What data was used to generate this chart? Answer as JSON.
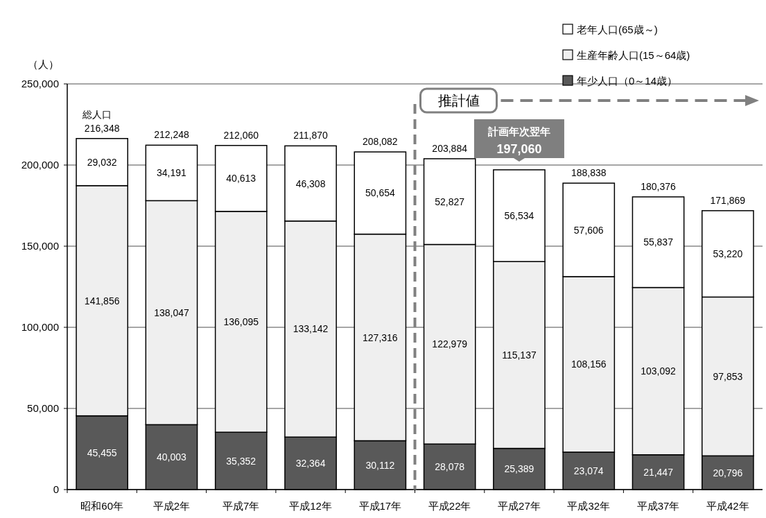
{
  "chart_data": {
    "type": "bar",
    "stacked": true,
    "ylabel": "（人）",
    "categories": [
      "昭和60年",
      "平成2年",
      "平成7年",
      "平成12年",
      "平成17年",
      "平成22年",
      "平成27年",
      "平成32年",
      "平成37年",
      "平成42年"
    ],
    "series": [
      {
        "name": "年少人口（0～14歳）",
        "color": "#595959",
        "values": [
          45455,
          40003,
          35352,
          32364,
          30112,
          28078,
          25389,
          23074,
          21447,
          20796
        ],
        "value_labels": [
          "45,455",
          "40,003",
          "35,352",
          "32,364",
          "30,112",
          "28,078",
          "25,389",
          "23,074",
          "21,447",
          "20,796"
        ]
      },
      {
        "name": "生産年齢人口(15～64歳)",
        "color": "#efefef",
        "values": [
          141856,
          138047,
          136095,
          133142,
          127316,
          122979,
          115137,
          108156,
          103092,
          97853
        ],
        "value_labels": [
          "141,856",
          "138,047",
          "136,095",
          "133,142",
          "127,316",
          "122,979",
          "115,137",
          "108,156",
          "103,092",
          "97,853"
        ]
      },
      {
        "name": "老年人口(65歳～)",
        "color": "#ffffff",
        "values": [
          29032,
          34191,
          40613,
          46308,
          50654,
          52827,
          56534,
          57606,
          55837,
          53220
        ],
        "value_labels": [
          "29,032",
          "34,191",
          "40,613",
          "46,308",
          "50,654",
          "52,827",
          "56,534",
          "57,606",
          "55,837",
          "53,220"
        ]
      }
    ],
    "ylim": [
      0,
      250000
    ],
    "yticks": [
      {
        "value": 0,
        "label": "0"
      },
      {
        "value": 50000,
        "label": "50,000"
      },
      {
        "value": 100000,
        "label": "100,000"
      },
      {
        "value": 150000,
        "label": "150,000"
      },
      {
        "value": 200000,
        "label": "200,000"
      },
      {
        "value": 250000,
        "label": "250,000"
      }
    ],
    "grid": "y",
    "legend": "top right",
    "annotations": [
      "総人口",
      {
        "text": "216,348",
        "x": "昭和60年",
        "y": 216348
      },
      {
        "text": "212,248",
        "x": "平成2年",
        "y": 212248
      },
      {
        "text": "212,060",
        "x": "平成7年",
        "y": 212060
      },
      {
        "text": "211,870",
        "x": "平成12年",
        "y": 211870
      },
      {
        "text": "208,082",
        "x": "平成17年",
        "y": 208082
      },
      {
        "text": "203,884",
        "x": "平成22年",
        "y": 203884
      },
      "計画年次翌年",
      {
        "text": "197,060",
        "x": "平成27年",
        "y": 197060
      },
      {
        "text": "188,838",
        "x": "平成32年",
        "y": 188838
      },
      {
        "text": "180,376",
        "x": "平成37年",
        "y": 180376
      },
      {
        "text": "171,869",
        "x": "平成42年",
        "y": 171869
      },
      "推計値"
    ]
  }
}
